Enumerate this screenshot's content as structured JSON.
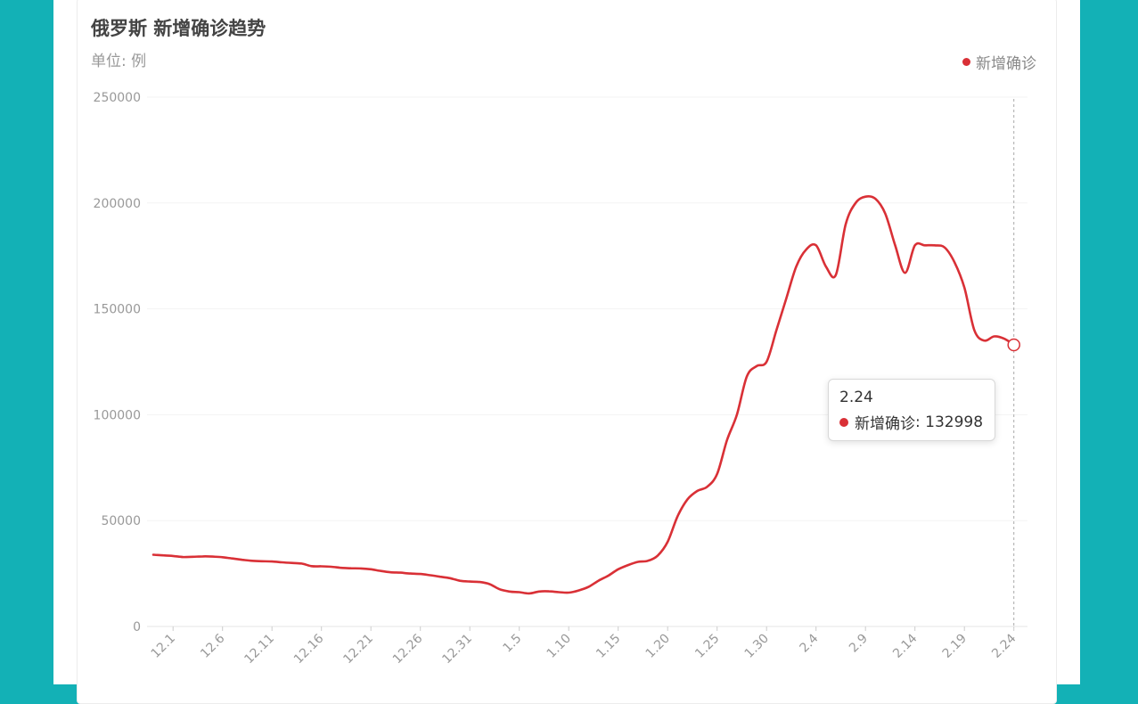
{
  "header": {
    "title": "俄罗斯 新增确诊趋势",
    "unit": "单位: 例"
  },
  "legend": {
    "label": "新增确诊",
    "color": "#d93036",
    "position": "top-right"
  },
  "tooltip": {
    "title": "2.24",
    "series_label": "新增确诊",
    "value": "132998"
  },
  "chart_data": {
    "type": "line",
    "title": "俄罗斯 新增确诊趋势",
    "ylabel": "单位: 例",
    "ylim": [
      0,
      250000
    ],
    "yticks": [
      "0",
      "50000",
      "100000",
      "150000",
      "200000",
      "250000"
    ],
    "xticks": [
      "12.1",
      "12.6",
      "12.11",
      "12.16",
      "12.21",
      "12.26",
      "12.31",
      "1.5",
      "1.10",
      "1.15",
      "1.20",
      "1.25",
      "1.30",
      "2.4",
      "2.9",
      "2.14",
      "2.19",
      "2.24"
    ],
    "grid": true,
    "series": [
      {
        "name": "新增确诊",
        "color": "#d93036",
        "x": [
          "11.29",
          "11.30",
          "12.1",
          "12.2",
          "12.3",
          "12.4",
          "12.5",
          "12.6",
          "12.7",
          "12.8",
          "12.9",
          "12.10",
          "12.11",
          "12.12",
          "12.13",
          "12.14",
          "12.15",
          "12.16",
          "12.17",
          "12.18",
          "12.19",
          "12.20",
          "12.21",
          "12.22",
          "12.23",
          "12.24",
          "12.25",
          "12.26",
          "12.27",
          "12.28",
          "12.29",
          "12.30",
          "12.31",
          "1.1",
          "1.2",
          "1.3",
          "1.4",
          "1.5",
          "1.6",
          "1.7",
          "1.8",
          "1.9",
          "1.10",
          "1.11",
          "1.12",
          "1.13",
          "1.14",
          "1.15",
          "1.16",
          "1.17",
          "1.18",
          "1.19",
          "1.20",
          "1.21",
          "1.22",
          "1.23",
          "1.24",
          "1.25",
          "1.26",
          "1.27",
          "1.28",
          "1.29",
          "1.30",
          "1.31",
          "2.1",
          "2.2",
          "2.3",
          "2.4",
          "2.5",
          "2.6",
          "2.7",
          "2.8",
          "2.9",
          "2.10",
          "2.11",
          "2.12",
          "2.13",
          "2.14",
          "2.15",
          "2.16",
          "2.17",
          "2.18",
          "2.19",
          "2.20",
          "2.21",
          "2.22",
          "2.23",
          "2.24"
        ],
        "values": [
          33860,
          33600,
          33300,
          32800,
          32900,
          33100,
          33000,
          32700,
          32100,
          31500,
          31000,
          30800,
          30700,
          30300,
          30000,
          29700,
          28500,
          28400,
          28200,
          27700,
          27500,
          27400,
          27000,
          26200,
          25600,
          25400,
          25000,
          24800,
          24200,
          23500,
          22800,
          21600,
          21200,
          21000,
          20000,
          17600,
          16500,
          16200,
          15600,
          16500,
          16600,
          16200,
          16000,
          17000,
          18700,
          21600,
          24000,
          27000,
          29000,
          30500,
          31000,
          33500,
          40000,
          52000,
          60000,
          64000,
          66000,
          72000,
          88000,
          100000,
          118000,
          123000,
          125000,
          140000,
          155000,
          170000,
          178000,
          180000,
          170000,
          166000,
          190000,
          200000,
          203000,
          202000,
          195000,
          180000,
          167000,
          180000,
          180000,
          180000,
          179000,
          172000,
          160000,
          140000,
          135000,
          137000,
          136000,
          132998
        ]
      }
    ]
  }
}
